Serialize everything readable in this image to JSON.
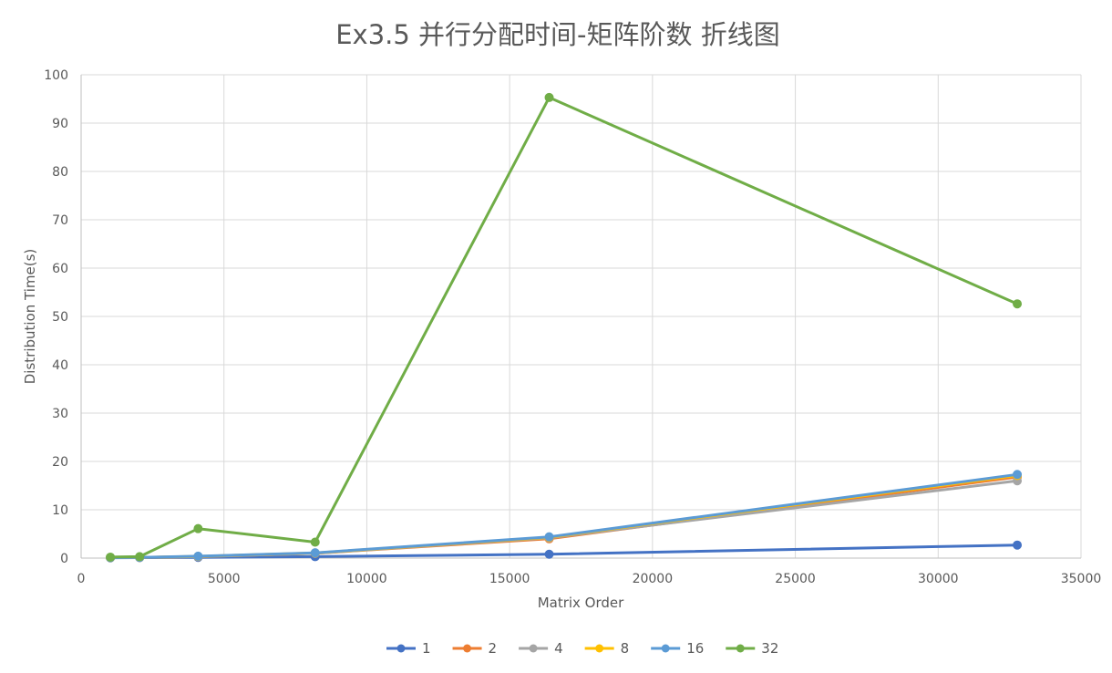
{
  "chart_data": {
    "type": "scatter",
    "title": "Ex3.5 并行分配时间-矩阵阶数 折线图",
    "xlabel": "Matrix Order",
    "ylabel": "Distribution Time(s)",
    "xlim": [
      0,
      35000
    ],
    "ylim": [
      0,
      100
    ],
    "x_ticks": [
      0,
      5000,
      10000,
      15000,
      20000,
      25000,
      30000,
      35000
    ],
    "y_ticks": [
      0,
      10,
      20,
      30,
      40,
      50,
      60,
      70,
      80,
      90,
      100
    ],
    "grid": true,
    "legend_position": "bottom",
    "series": [
      {
        "name": "1",
        "color": "#4472c4",
        "x": [
          1024,
          2048,
          4096,
          8192,
          16384,
          32768
        ],
        "y": [
          0.05,
          0.1,
          0.15,
          0.3,
          0.8,
          2.7
        ]
      },
      {
        "name": "2",
        "color": "#ed7d31",
        "x": [
          1024,
          2048,
          4096,
          8192,
          16384,
          32768
        ],
        "y": [
          0.1,
          0.15,
          0.3,
          1.0,
          4.0,
          16.8
        ]
      },
      {
        "name": "4",
        "color": "#a5a5a5",
        "x": [
          1024,
          2048,
          4096,
          8192,
          16384,
          32768
        ],
        "y": [
          0.1,
          0.15,
          0.3,
          1.0,
          4.2,
          16.0
        ]
      },
      {
        "name": "8",
        "color": "#ffc000",
        "x": [
          1024,
          2048,
          4096,
          8192,
          16384,
          32768
        ],
        "y": [
          0.1,
          0.15,
          0.35,
          1.05,
          4.3,
          17.1
        ]
      },
      {
        "name": "16",
        "color": "#5b9bd5",
        "x": [
          1024,
          2048,
          4096,
          8192,
          16384,
          32768
        ],
        "y": [
          0.1,
          0.15,
          0.4,
          1.1,
          4.4,
          17.3
        ]
      },
      {
        "name": "32",
        "color": "#70ad47",
        "x": [
          1024,
          2048,
          4096,
          8192,
          16384,
          32768
        ],
        "y": [
          0.2,
          0.3,
          6.1,
          3.3,
          95.3,
          52.6
        ]
      }
    ]
  }
}
